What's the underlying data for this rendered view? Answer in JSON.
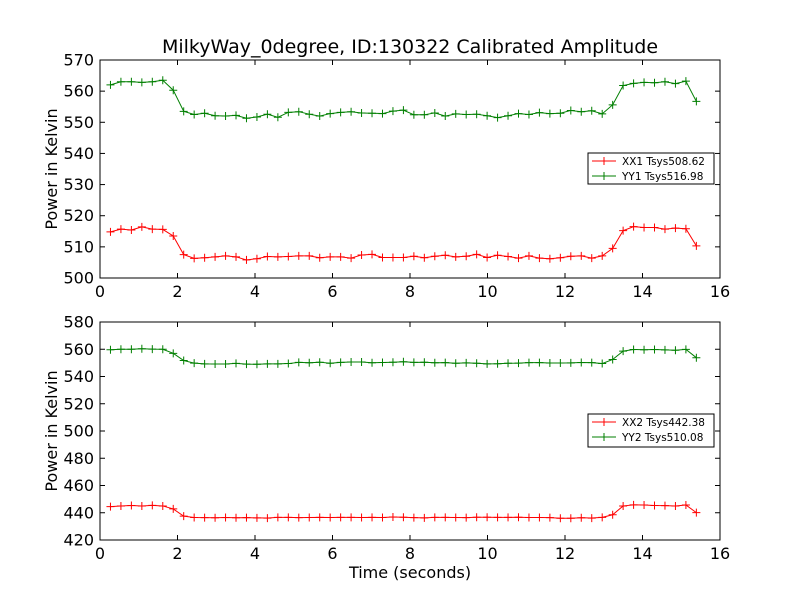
{
  "title": "MilkyWay_0degree, ID:130322 Calibrated Amplitude",
  "colors": {
    "xx": "#ff0000",
    "yy": "#007f00"
  },
  "chart_data": [
    {
      "type": "line",
      "title": "MilkyWay_0degree, ID:130322 Calibrated Amplitude",
      "xlabel": "",
      "ylabel": "Power in Kelvin",
      "xlim": [
        0,
        16
      ],
      "ylim": [
        500,
        570
      ],
      "xticks": [
        0,
        2,
        4,
        6,
        8,
        10,
        12,
        14,
        16
      ],
      "yticks": [
        500,
        510,
        520,
        530,
        540,
        550,
        560,
        570
      ],
      "grid": false,
      "legend": "center-right",
      "marker": "plus",
      "x": [
        0.27,
        0.54,
        0.81,
        1.08,
        1.35,
        1.62,
        1.89,
        2.16,
        2.43,
        2.7,
        2.97,
        3.24,
        3.51,
        3.78,
        4.05,
        4.32,
        4.59,
        4.86,
        5.13,
        5.4,
        5.67,
        5.94,
        6.21,
        6.48,
        6.75,
        7.02,
        7.29,
        7.56,
        7.83,
        8.1,
        8.37,
        8.64,
        8.91,
        9.18,
        9.45,
        9.72,
        9.99,
        10.26,
        10.53,
        10.8,
        11.07,
        11.34,
        11.61,
        11.88,
        12.15,
        12.42,
        12.69,
        12.96,
        13.23,
        13.5,
        13.77,
        14.04,
        14.31,
        14.58,
        14.85,
        15.12,
        15.39
      ],
      "series": [
        {
          "name": "XX1 Tsys508.62",
          "color": "#ff0000",
          "values": [
            514.8,
            515.7,
            515.4,
            516.4,
            515.7,
            515.6,
            513.5,
            507.5,
            506.3,
            506.5,
            506.8,
            507.1,
            506.8,
            505.8,
            506.2,
            506.9,
            506.8,
            506.9,
            507.1,
            507.1,
            506.5,
            506.8,
            506.8,
            506.4,
            507.4,
            507.6,
            506.6,
            506.6,
            506.6,
            507.0,
            506.5,
            507.0,
            507.3,
            506.8,
            507.0,
            507.6,
            506.6,
            507.3,
            506.9,
            506.4,
            507.1,
            506.4,
            506.2,
            506.5,
            507.0,
            507.1,
            506.4,
            507.1,
            509.5,
            515.2,
            516.5,
            516.2,
            516.2,
            515.7,
            516.0,
            515.8,
            510.3
          ]
        },
        {
          "name": "YY1 Tsys516.98",
          "color": "#007f00",
          "values": [
            562.0,
            563.0,
            563.0,
            562.8,
            563.0,
            563.5,
            560.3,
            553.5,
            552.5,
            552.9,
            552.1,
            552.0,
            552.2,
            551.3,
            551.7,
            552.6,
            551.6,
            553.2,
            553.4,
            552.6,
            552.0,
            552.8,
            553.2,
            553.4,
            553.0,
            552.9,
            552.8,
            553.6,
            553.9,
            552.4,
            552.4,
            553.0,
            552.0,
            552.7,
            552.5,
            552.6,
            552.1,
            551.5,
            552.1,
            552.8,
            552.5,
            553.1,
            552.8,
            552.9,
            553.8,
            553.4,
            553.7,
            552.7,
            555.6,
            561.8,
            562.5,
            562.8,
            562.7,
            563.0,
            562.4,
            563.2,
            556.7
          ]
        }
      ]
    },
    {
      "type": "line",
      "title": "",
      "xlabel": "Time (seconds)",
      "ylabel": "Power in Kelvin",
      "xlim": [
        0,
        16
      ],
      "ylim": [
        420,
        580
      ],
      "xticks": [
        0,
        2,
        4,
        6,
        8,
        10,
        12,
        14,
        16
      ],
      "yticks": [
        420,
        440,
        460,
        480,
        500,
        520,
        540,
        560,
        580
      ],
      "grid": false,
      "legend": "center-right",
      "marker": "plus",
      "x": [
        0.27,
        0.54,
        0.81,
        1.08,
        1.35,
        1.62,
        1.89,
        2.16,
        2.43,
        2.7,
        2.97,
        3.24,
        3.51,
        3.78,
        4.05,
        4.32,
        4.59,
        4.86,
        5.13,
        5.4,
        5.67,
        5.94,
        6.21,
        6.48,
        6.75,
        7.02,
        7.29,
        7.56,
        7.83,
        8.1,
        8.37,
        8.64,
        8.91,
        9.18,
        9.45,
        9.72,
        9.99,
        10.26,
        10.53,
        10.8,
        11.07,
        11.34,
        11.61,
        11.88,
        12.15,
        12.42,
        12.69,
        12.96,
        13.23,
        13.5,
        13.77,
        14.04,
        14.31,
        14.58,
        14.85,
        15.12,
        15.39
      ],
      "series": [
        {
          "name": "XX2 Tsys442.38",
          "color": "#ff0000",
          "values": [
            444.5,
            445.0,
            445.3,
            445.0,
            445.4,
            445.0,
            442.8,
            437.5,
            436.5,
            436.4,
            436.3,
            436.5,
            436.3,
            436.4,
            436.2,
            436.1,
            436.6,
            436.6,
            436.4,
            436.5,
            436.6,
            436.5,
            436.6,
            436.6,
            436.5,
            436.6,
            436.5,
            436.9,
            436.7,
            436.4,
            436.2,
            436.6,
            436.6,
            436.5,
            436.4,
            436.7,
            436.7,
            436.6,
            436.6,
            436.7,
            436.5,
            436.5,
            436.4,
            436.0,
            436.0,
            436.3,
            436.1,
            436.6,
            438.5,
            445.0,
            445.8,
            445.7,
            445.3,
            445.2,
            445.0,
            445.7,
            440.1
          ]
        },
        {
          "name": "YY2 Tsys510.08",
          "color": "#007f00",
          "values": [
            559.6,
            560.0,
            560.0,
            560.4,
            560.1,
            560.0,
            557.0,
            551.7,
            549.8,
            549.3,
            549.2,
            549.2,
            549.6,
            549.1,
            549.0,
            549.3,
            549.3,
            549.5,
            550.4,
            550.1,
            550.5,
            549.7,
            550.4,
            550.6,
            550.6,
            550.1,
            550.3,
            550.5,
            550.8,
            550.4,
            550.5,
            550.1,
            550.2,
            549.7,
            550.0,
            549.7,
            549.3,
            549.4,
            549.7,
            549.8,
            550.2,
            550.2,
            549.9,
            549.9,
            550.0,
            550.3,
            550.2,
            549.5,
            552.5,
            558.6,
            559.8,
            559.6,
            559.8,
            559.5,
            559.3,
            559.9,
            553.8
          ]
        }
      ]
    }
  ]
}
